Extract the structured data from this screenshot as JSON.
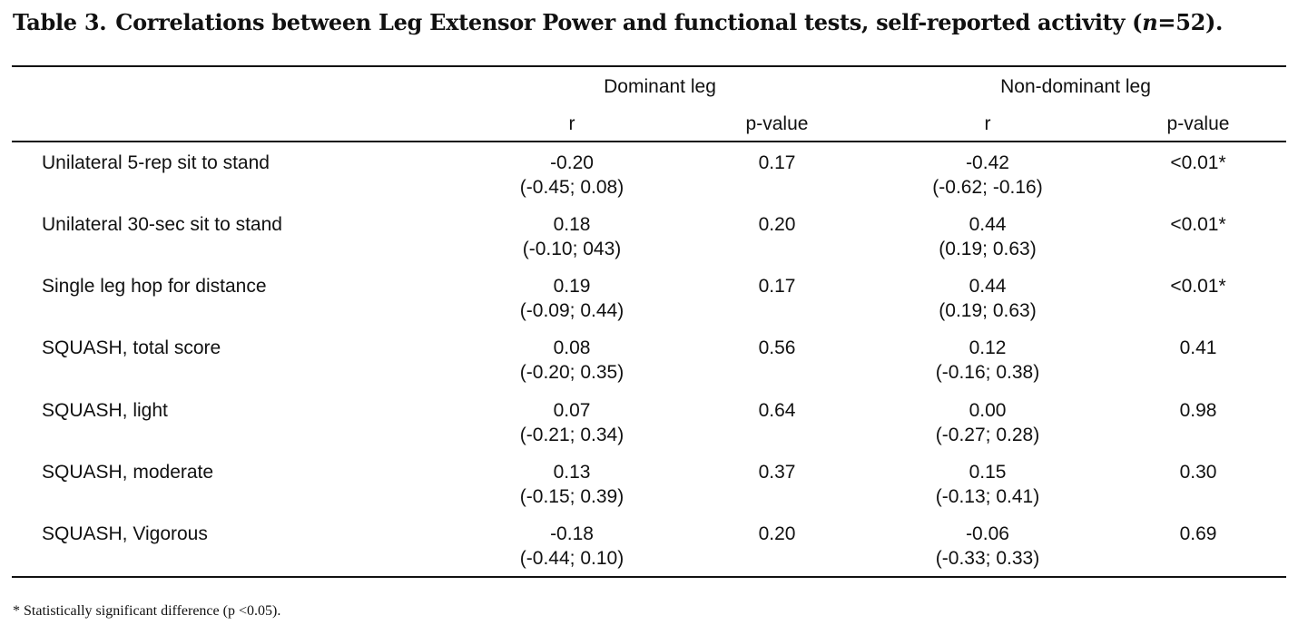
{
  "caption": {
    "label": "Table 3.",
    "text_before": "Correlations between Leg Extensor Power and functional tests, self-reported activity (",
    "n_symbol": "n",
    "text_after": "=52)."
  },
  "headers": {
    "group_dominant": "Dominant leg",
    "group_nondominant": "Non-dominant leg",
    "r_dominant": "r",
    "p_dominant": "p-value",
    "r_nondominant": "r",
    "p_nondominant": "p-value"
  },
  "rows": [
    {
      "label": "Unilateral 5-rep sit to stand",
      "d_r": "-0.20",
      "d_ci": "(-0.45; 0.08)",
      "d_p": "0.17",
      "n_r": "-0.42",
      "n_ci": "(-0.62; -0.16)",
      "n_p": "<0.01*"
    },
    {
      "label": "Unilateral 30-sec sit to stand",
      "d_r": "0.18",
      "d_ci": "(-0.10; 043)",
      "d_p": "0.20",
      "n_r": "0.44",
      "n_ci": "(0.19; 0.63)",
      "n_p": "<0.01*"
    },
    {
      "label": "Single leg hop for distance",
      "d_r": "0.19",
      "d_ci": "(-0.09; 0.44)",
      "d_p": "0.17",
      "n_r": "0.44",
      "n_ci": "(0.19; 0.63)",
      "n_p": "<0.01*"
    },
    {
      "label": "SQUASH, total score",
      "d_r": "0.08",
      "d_ci": "(-0.20; 0.35)",
      "d_p": "0.56",
      "n_r": "0.12",
      "n_ci": "(-0.16; 0.38)",
      "n_p": "0.41"
    },
    {
      "label": "SQUASH, light",
      "d_r": "0.07",
      "d_ci": "(-0.21; 0.34)",
      "d_p": "0.64",
      "n_r": "0.00",
      "n_ci": "(-0.27; 0.28)",
      "n_p": "0.98"
    },
    {
      "label": "SQUASH, moderate",
      "d_r": "0.13",
      "d_ci": "(-0.15; 0.39)",
      "d_p": "0.37",
      "n_r": "0.15",
      "n_ci": "(-0.13; 0.41)",
      "n_p": "0.30"
    },
    {
      "label": "SQUASH, Vigorous",
      "d_r": "-0.18",
      "d_ci": "(-0.44; 0.10)",
      "d_p": "0.20",
      "n_r": "-0.06",
      "n_ci": "(-0.33; 0.33)",
      "n_p": "0.69"
    }
  ],
  "footnote": "* Statistically significant difference (p <0.05)."
}
